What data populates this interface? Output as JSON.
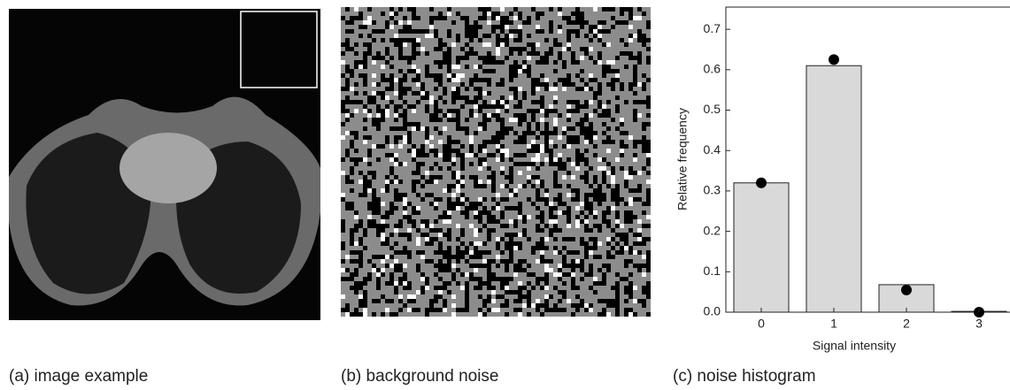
{
  "panels": {
    "a": "(a) image example",
    "b": "(b) background noise",
    "c": "(c) noise histogram"
  },
  "chart_data": {
    "type": "bar",
    "xlabel": "Signal intensity",
    "ylabel": "Relative frequency",
    "categories": [
      "0",
      "1",
      "2",
      "3"
    ],
    "series": [
      {
        "color": "#d9d9d9",
        "values": [
          0.32,
          0.61,
          0.068,
          0.002
        ]
      },
      {
        "color": "#000000",
        "marker": "dot",
        "values": [
          0.32,
          0.625,
          0.055,
          0.0
        ]
      }
    ],
    "ylim": [
      0,
      0.755
    ],
    "yticks": [
      {
        "value": 0,
        "label": "0.0"
      },
      0.1,
      0.2,
      0.3,
      0.4,
      0.5,
      0.6,
      0.7
    ]
  }
}
